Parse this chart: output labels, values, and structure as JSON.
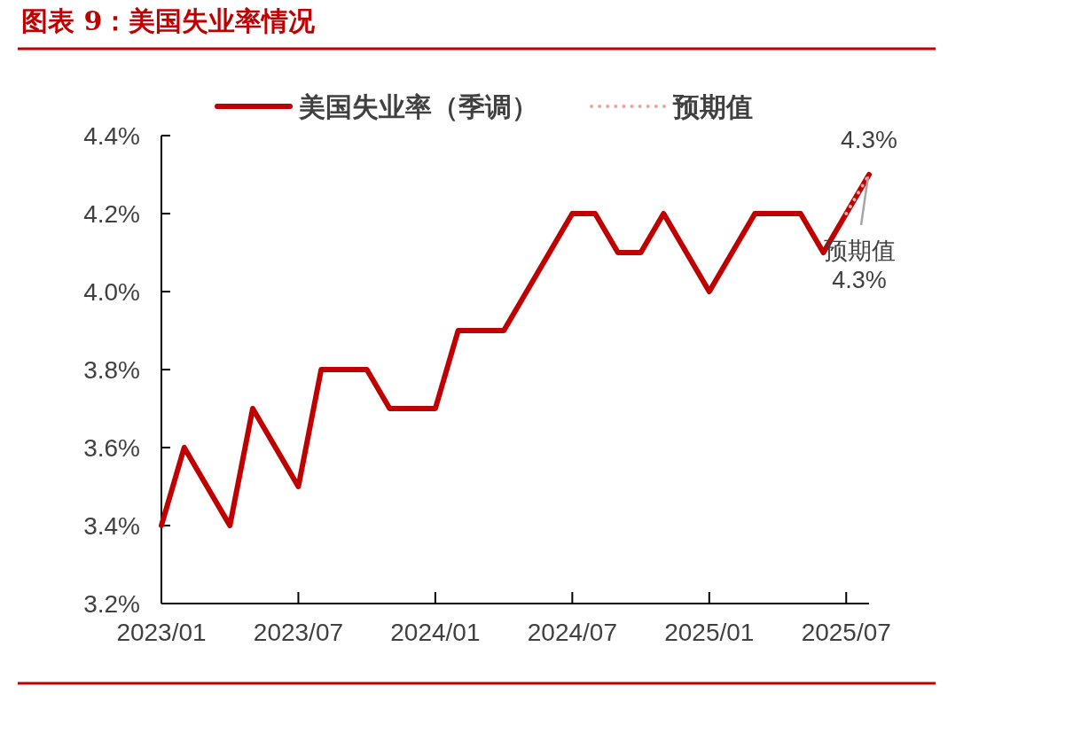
{
  "chart_data": {
    "type": "line",
    "title": "图表 9：美国失业率情况",
    "legend": "top",
    "x": [
      "2023-01",
      "2023-02",
      "2023-03",
      "2023-04",
      "2023-05",
      "2023-06",
      "2023-07",
      "2023-08",
      "2023-09",
      "2023-10",
      "2023-11",
      "2023-12",
      "2024-01",
      "2024-02",
      "2024-03",
      "2024-04",
      "2024-05",
      "2024-06",
      "2024-07",
      "2024-08",
      "2024-09",
      "2024-10",
      "2024-11",
      "2024-12",
      "2025-01",
      "2025-02",
      "2025-03",
      "2025-04",
      "2025-05",
      "2025-06",
      "2025-07",
      "2025-08"
    ],
    "xlim": [
      "2023-01",
      "2025-08"
    ],
    "xticks": [
      {
        "value": "2023-01",
        "label": "2023/01"
      },
      {
        "value": "2023-07",
        "label": "2023/07"
      },
      {
        "value": "2024-01",
        "label": "2024/01"
      },
      {
        "value": "2024-07",
        "label": "2024/07"
      },
      {
        "value": "2025-01",
        "label": "2025/01"
      },
      {
        "value": "2025-07",
        "label": "2025/07"
      }
    ],
    "ylim": [
      3.2,
      4.4
    ],
    "yticks": [
      {
        "value": 3.2,
        "label": "3.2%"
      },
      {
        "value": 3.4,
        "label": "3.4%"
      },
      {
        "value": 3.6,
        "label": "3.6%"
      },
      {
        "value": 3.8,
        "label": "3.8%"
      },
      {
        "value": 4.0,
        "label": "4.0%"
      },
      {
        "value": 4.2,
        "label": "4.2%"
      },
      {
        "value": 4.4,
        "label": "4.4%"
      }
    ],
    "series": [
      {
        "name": "美国失业率（季调）",
        "color": "#c00000",
        "line_style": "solid",
        "values": [
          3.4,
          3.6,
          3.5,
          3.4,
          3.7,
          3.6,
          3.5,
          3.8,
          3.8,
          3.8,
          3.7,
          3.7,
          3.7,
          3.9,
          3.9,
          3.9,
          4.0,
          4.1,
          4.2,
          4.2,
          4.1,
          4.1,
          4.2,
          4.1,
          4.0,
          4.1,
          4.2,
          4.2,
          4.2,
          4.1,
          4.2,
          4.3
        ]
      },
      {
        "name": "预期值",
        "color": "#e6a6a6",
        "line_style": "dotted",
        "x": [
          "2025-07",
          "2025-08"
        ],
        "values": [
          4.2,
          4.3
        ]
      }
    ],
    "annotations": [
      {
        "text": "4.3%",
        "x": "2025-08",
        "y": 4.3
      },
      {
        "text": "预期值\n4.3%",
        "x": "2025-08",
        "y": 4.3
      }
    ]
  }
}
